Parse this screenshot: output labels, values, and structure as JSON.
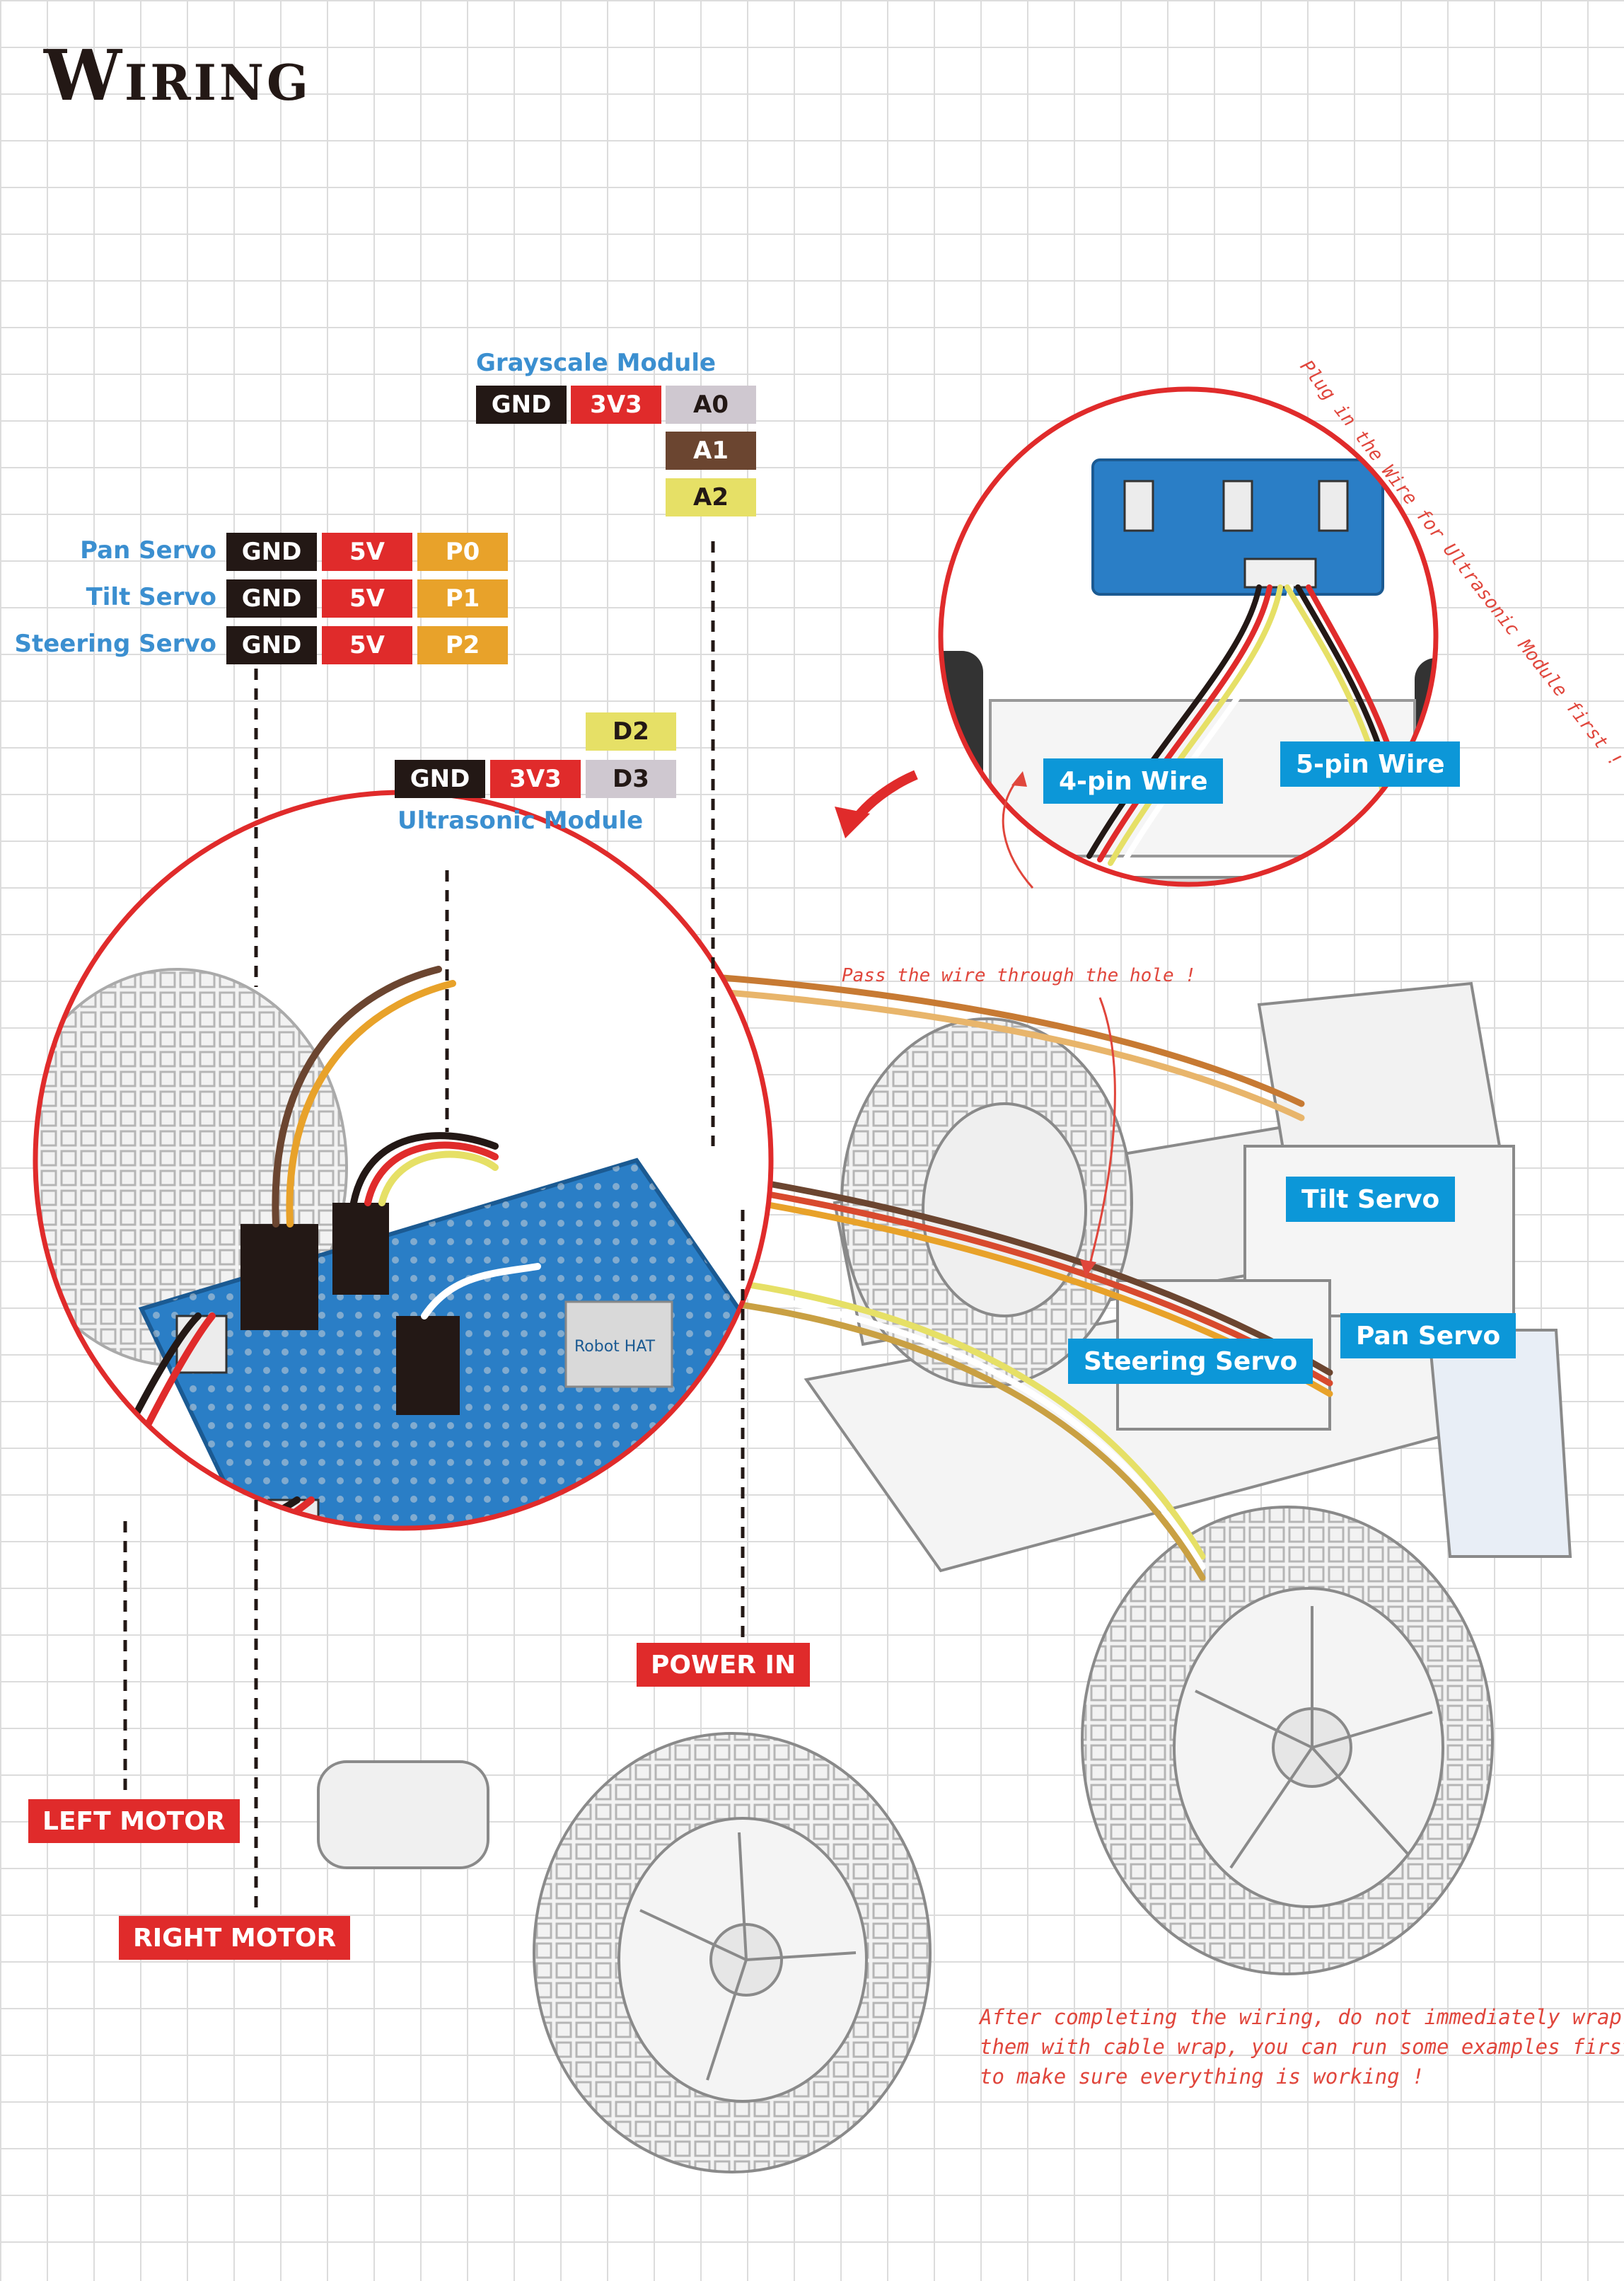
{
  "title": "Wiring",
  "grayscale": {
    "label": "Grayscale Module",
    "pins": [
      "GND",
      "3V3",
      "A0",
      "A1",
      "A2"
    ]
  },
  "servos": [
    {
      "label": "Pan Servo",
      "pins": [
        "GND",
        "5V",
        "P0"
      ]
    },
    {
      "label": "Tilt Servo",
      "pins": [
        "GND",
        "5V",
        "P1"
      ]
    },
    {
      "label": "Steering Servo",
      "pins": [
        "GND",
        "5V",
        "P2"
      ]
    }
  ],
  "ultrasonic": {
    "label": "Ultrasonic Module",
    "pins": [
      "D2",
      "GND",
      "3V3",
      "D3"
    ]
  },
  "callouts": {
    "four_pin": "4-pin Wire",
    "five_pin": "5-pin Wire",
    "tilt_servo": "Tilt Servo",
    "pan_servo": "Pan Servo",
    "steering_servo": "Steering Servo",
    "power_in": "POWER IN",
    "left_motor": "LEFT MOTOR",
    "right_motor": "RIGHT MOTOR"
  },
  "notes": {
    "plug_in": "Plug in the Wire for Ultrasonic Module first !",
    "pass_wire": "Pass the wire through the hole !",
    "after_line1": "After completing the wiring, do not immediately wrap",
    "after_line2": "them with cable wrap, you can run some examples first",
    "after_line3": "to make sure everything is working !"
  },
  "board_text": "Robot HAT",
  "colors": {
    "accent_red": "#e02b2b",
    "accent_blue": "#0c97d8",
    "label_blue": "#3b8fd0",
    "board_blue": "#2a7ec6"
  }
}
